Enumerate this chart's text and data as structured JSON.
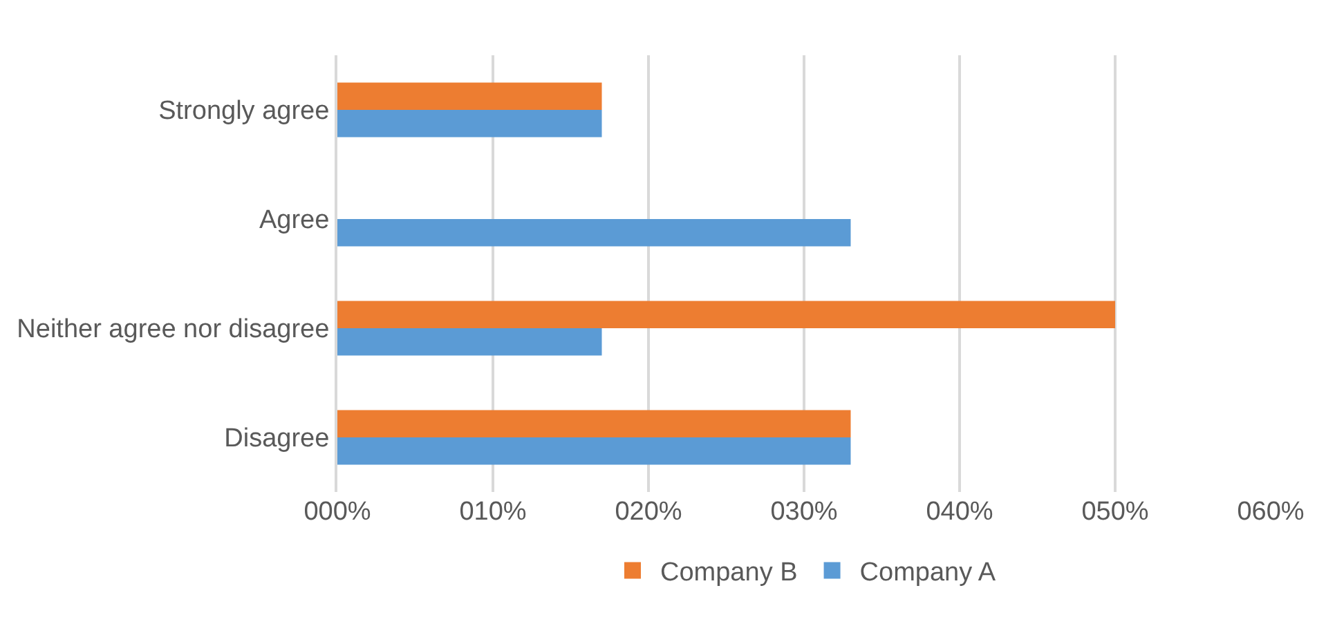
{
  "chart_data": {
    "type": "bar",
    "orientation": "horizontal",
    "categories": [
      "Strongly agree",
      "Agree",
      "Neither agree nor disagree",
      "Disagree"
    ],
    "series": [
      {
        "name": "Company B",
        "color": "#ed7d31",
        "values": [
          17,
          0,
          50,
          33
        ]
      },
      {
        "name": "Company A",
        "color": "#5b9bd5",
        "values": [
          17,
          33,
          17,
          33
        ]
      }
    ],
    "xlim": [
      0,
      60
    ],
    "xticks": [
      {
        "value": 0,
        "label": "000%"
      },
      {
        "value": 10,
        "label": "010%"
      },
      {
        "value": 20,
        "label": "020%"
      },
      {
        "value": 30,
        "label": "030%"
      },
      {
        "value": 40,
        "label": "040%"
      },
      {
        "value": 50,
        "label": "050%"
      },
      {
        "value": 60,
        "label": "060%"
      }
    ],
    "grid": "x",
    "legend": "bottom"
  }
}
